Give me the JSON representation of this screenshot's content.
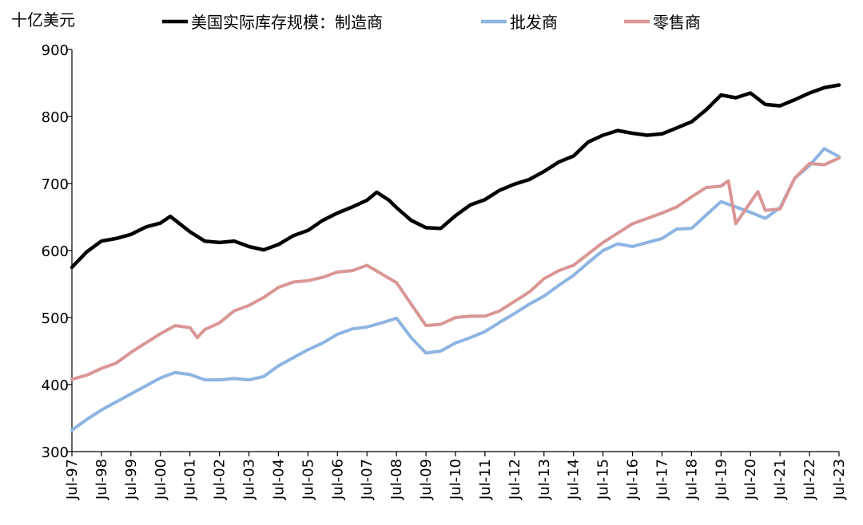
{
  "chart_data": {
    "type": "line",
    "unit_label": "十亿美元",
    "ylim": [
      300,
      900
    ],
    "yticks": [
      300,
      400,
      500,
      600,
      700,
      800,
      900
    ],
    "x_tick_labels": [
      "Jul-97",
      "Jul-98",
      "Jul-99",
      "Jul-00",
      "Jul-01",
      "Jul-02",
      "Jul-03",
      "Jul-04",
      "Jul-05",
      "Jul-06",
      "Jul-07",
      "Jul-08",
      "Jul-09",
      "Jul-10",
      "Jul-11",
      "Jul-12",
      "Jul-13",
      "Jul-14",
      "Jul-15",
      "Jul-16",
      "Jul-17",
      "Jul-18",
      "Jul-19",
      "Jul-20",
      "Jul-21",
      "Jul-22",
      "Jul-23"
    ],
    "grid": false,
    "legend_position": "top",
    "series": [
      {
        "name": "美国实际库存规模：制造商",
        "color": "#000000",
        "points": [
          [
            "Jul-97",
            575
          ],
          [
            "Jan-98",
            598
          ],
          [
            "Jul-98",
            614
          ],
          [
            "Jan-99",
            618
          ],
          [
            "Jul-99",
            624
          ],
          [
            "Jan-00",
            635
          ],
          [
            "Jul-00",
            641
          ],
          [
            "Nov-00",
            651
          ],
          [
            "Jul-01",
            628
          ],
          [
            "Jan-02",
            614
          ],
          [
            "Jul-02",
            612
          ],
          [
            "Jan-03",
            614
          ],
          [
            "Jul-03",
            606
          ],
          [
            "Jan-04",
            601
          ],
          [
            "Jul-04",
            609
          ],
          [
            "Jan-05",
            622
          ],
          [
            "Jul-05",
            630
          ],
          [
            "Jan-06",
            645
          ],
          [
            "Jul-06",
            656
          ],
          [
            "Jan-07",
            665
          ],
          [
            "Jul-07",
            675
          ],
          [
            "Nov-07",
            687
          ],
          [
            "Apr-08",
            675
          ],
          [
            "Jul-08",
            664
          ],
          [
            "Jan-09",
            645
          ],
          [
            "Jul-09",
            634
          ],
          [
            "Jan-10",
            633
          ],
          [
            "Jul-10",
            652
          ],
          [
            "Jan-11",
            668
          ],
          [
            "Jul-11",
            676
          ],
          [
            "Jan-12",
            690
          ],
          [
            "Jul-12",
            699
          ],
          [
            "Jan-13",
            706
          ],
          [
            "Jul-13",
            718
          ],
          [
            "Jan-14",
            732
          ],
          [
            "Jul-14",
            741
          ],
          [
            "Jan-15",
            762
          ],
          [
            "Jul-15",
            772
          ],
          [
            "Jan-16",
            779
          ],
          [
            "Jul-16",
            775
          ],
          [
            "Jan-17",
            772
          ],
          [
            "Jul-17",
            774
          ],
          [
            "Jan-18",
            783
          ],
          [
            "Jul-18",
            792
          ],
          [
            "Jan-19",
            810
          ],
          [
            "Jul-19",
            832
          ],
          [
            "Jan-20",
            828
          ],
          [
            "Jul-20",
            835
          ],
          [
            "Jan-21",
            818
          ],
          [
            "Jul-21",
            816
          ],
          [
            "Jan-22",
            825
          ],
          [
            "Jul-22",
            835
          ],
          [
            "Jan-23",
            843
          ],
          [
            "Jul-23",
            847
          ]
        ]
      },
      {
        "name": "批发商",
        "color": "#8db4e2",
        "points": [
          [
            "Jul-97",
            332
          ],
          [
            "Jan-98",
            348
          ],
          [
            "Jul-98",
            362
          ],
          [
            "Jan-99",
            374
          ],
          [
            "Jul-99",
            386
          ],
          [
            "Jan-00",
            398
          ],
          [
            "Jul-00",
            410
          ],
          [
            "Jan-01",
            418
          ],
          [
            "Jul-01",
            415
          ],
          [
            "Jan-02",
            407
          ],
          [
            "Jul-02",
            407
          ],
          [
            "Jan-03",
            409
          ],
          [
            "Jul-03",
            407
          ],
          [
            "Jan-04",
            412
          ],
          [
            "Jul-04",
            428
          ],
          [
            "Jan-05",
            440
          ],
          [
            "Jul-05",
            452
          ],
          [
            "Jan-06",
            462
          ],
          [
            "Jul-06",
            475
          ],
          [
            "Jan-07",
            483
          ],
          [
            "Jul-07",
            486
          ],
          [
            "Jan-08",
            492
          ],
          [
            "Jul-08",
            499
          ],
          [
            "Jan-09",
            470
          ],
          [
            "Jul-09",
            447
          ],
          [
            "Jan-10",
            450
          ],
          [
            "Jul-10",
            462
          ],
          [
            "Jan-11",
            470
          ],
          [
            "Jul-11",
            479
          ],
          [
            "Jan-12",
            493
          ],
          [
            "Jul-12",
            506
          ],
          [
            "Jan-13",
            520
          ],
          [
            "Jul-13",
            532
          ],
          [
            "Jan-14",
            548
          ],
          [
            "Jul-14",
            563
          ],
          [
            "Jan-15",
            582
          ],
          [
            "Jul-15",
            600
          ],
          [
            "Jan-16",
            610
          ],
          [
            "Jul-16",
            606
          ],
          [
            "Jan-17",
            612
          ],
          [
            "Jul-17",
            618
          ],
          [
            "Jan-18",
            632
          ],
          [
            "Jul-18",
            633
          ],
          [
            "Jan-19",
            653
          ],
          [
            "Jul-19",
            673
          ],
          [
            "Jan-20",
            665
          ],
          [
            "Jul-20",
            657
          ],
          [
            "Jan-21",
            648
          ],
          [
            "Jul-21",
            664
          ],
          [
            "Jan-22",
            708
          ],
          [
            "Jul-22",
            727
          ],
          [
            "Jan-23",
            752
          ],
          [
            "Jul-23",
            740
          ]
        ]
      },
      {
        "name": "零售商",
        "color": "#d99694",
        "points": [
          [
            "Jul-97",
            408
          ],
          [
            "Jan-98",
            414
          ],
          [
            "Jul-98",
            424
          ],
          [
            "Jan-99",
            432
          ],
          [
            "Jul-99",
            448
          ],
          [
            "Jan-00",
            462
          ],
          [
            "Jul-00",
            476
          ],
          [
            "Jan-01",
            488
          ],
          [
            "Jul-01",
            485
          ],
          [
            "Oct-01",
            470
          ],
          [
            "Jan-02",
            482
          ],
          [
            "Jul-02",
            492
          ],
          [
            "Jan-03",
            510
          ],
          [
            "Jul-03",
            518
          ],
          [
            "Jan-04",
            530
          ],
          [
            "Jul-04",
            545
          ],
          [
            "Jan-05",
            553
          ],
          [
            "Jul-05",
            555
          ],
          [
            "Jan-06",
            560
          ],
          [
            "Jul-06",
            568
          ],
          [
            "Jan-07",
            570
          ],
          [
            "Jul-07",
            578
          ],
          [
            "Jan-08",
            565
          ],
          [
            "Jul-08",
            552
          ],
          [
            "Jan-09",
            520
          ],
          [
            "Jul-09",
            488
          ],
          [
            "Jan-10",
            490
          ],
          [
            "Jul-10",
            500
          ],
          [
            "Jan-11",
            502
          ],
          [
            "Jul-11",
            502
          ],
          [
            "Jan-12",
            510
          ],
          [
            "Jul-12",
            524
          ],
          [
            "Jan-13",
            538
          ],
          [
            "Jul-13",
            558
          ],
          [
            "Jan-14",
            570
          ],
          [
            "Jul-14",
            578
          ],
          [
            "Jan-15",
            595
          ],
          [
            "Jul-15",
            612
          ],
          [
            "Jan-16",
            626
          ],
          [
            "Jul-16",
            640
          ],
          [
            "Jan-17",
            648
          ],
          [
            "Jul-17",
            656
          ],
          [
            "Jan-18",
            665
          ],
          [
            "Jul-18",
            680
          ],
          [
            "Jan-19",
            694
          ],
          [
            "Jul-19",
            696
          ],
          [
            "Oct-19",
            704
          ],
          [
            "Jan-20",
            640
          ],
          [
            "Jul-20",
            672
          ],
          [
            "Oct-20",
            688
          ],
          [
            "Jan-21",
            660
          ],
          [
            "Jul-21",
            662
          ],
          [
            "Jan-22",
            708
          ],
          [
            "Jul-22",
            730
          ],
          [
            "Jan-23",
            728
          ],
          [
            "Jul-23",
            738
          ]
        ]
      }
    ]
  }
}
